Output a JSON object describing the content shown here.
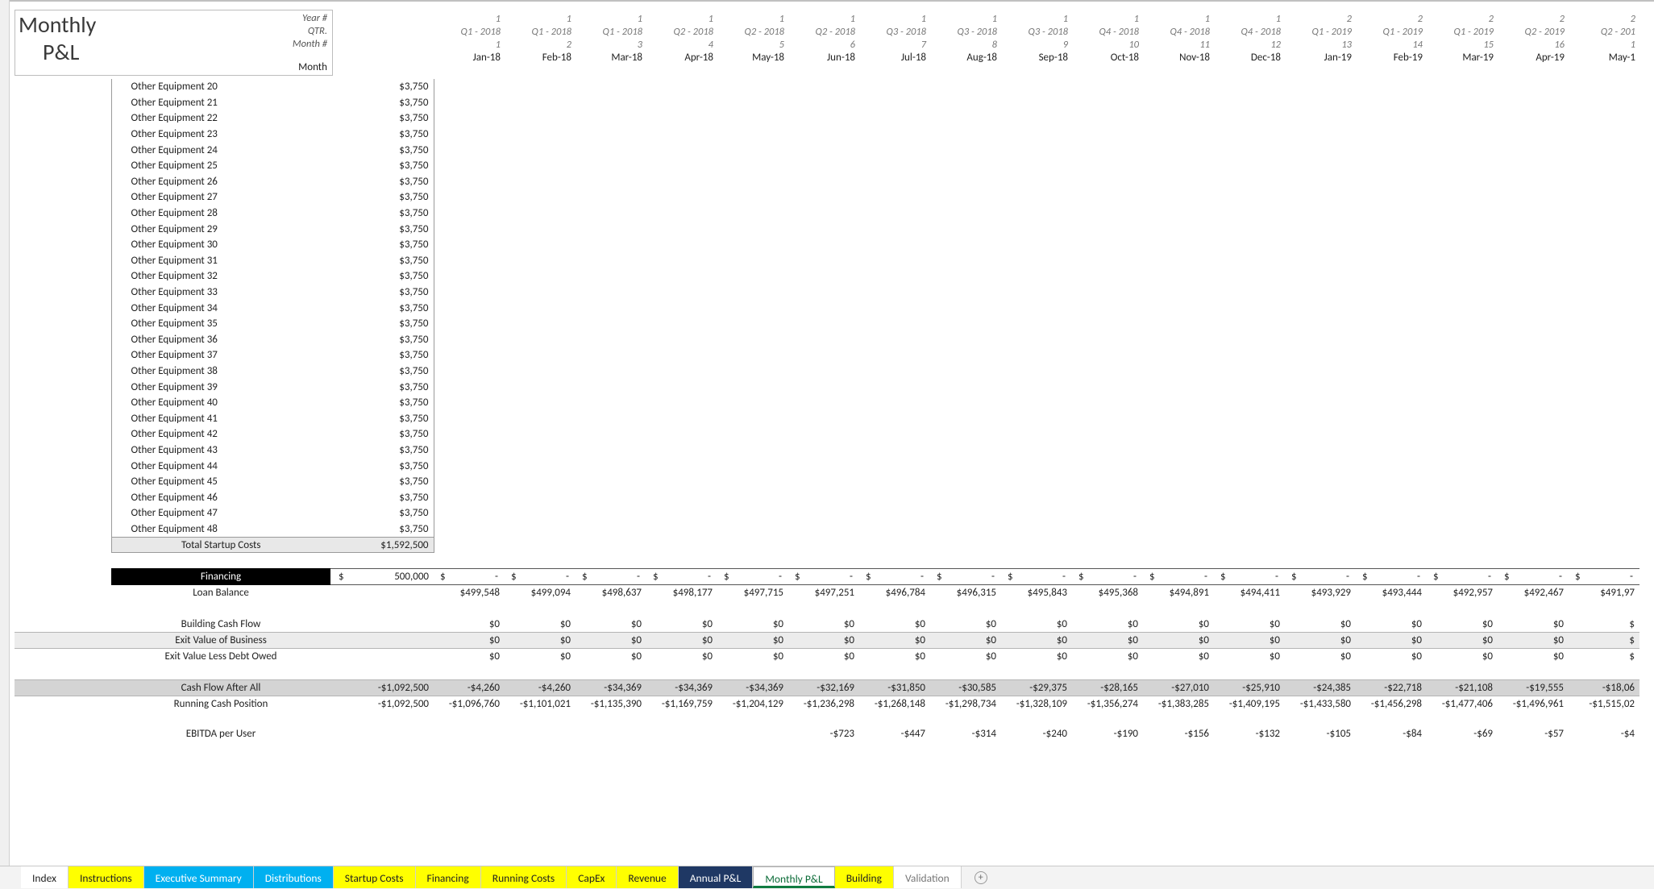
{
  "title": {
    "line1": "Monthly",
    "line2": "P&L"
  },
  "header_labels": {
    "year": "Year #",
    "qtr": "QTR.",
    "monthno": "Month #",
    "month": "Month"
  },
  "columns": [
    {
      "year": "1",
      "qtr": "Q1 - 2018",
      "mno": "1",
      "mon": "Jan-18"
    },
    {
      "year": "1",
      "qtr": "Q1 - 2018",
      "mno": "2",
      "mon": "Feb-18"
    },
    {
      "year": "1",
      "qtr": "Q1 - 2018",
      "mno": "3",
      "mon": "Mar-18"
    },
    {
      "year": "1",
      "qtr": "Q2 - 2018",
      "mno": "4",
      "mon": "Apr-18"
    },
    {
      "year": "1",
      "qtr": "Q2 - 2018",
      "mno": "5",
      "mon": "May-18"
    },
    {
      "year": "1",
      "qtr": "Q2 - 2018",
      "mno": "6",
      "mon": "Jun-18"
    },
    {
      "year": "1",
      "qtr": "Q3 - 2018",
      "mno": "7",
      "mon": "Jul-18"
    },
    {
      "year": "1",
      "qtr": "Q3 - 2018",
      "mno": "8",
      "mon": "Aug-18"
    },
    {
      "year": "1",
      "qtr": "Q3 - 2018",
      "mno": "9",
      "mon": "Sep-18"
    },
    {
      "year": "1",
      "qtr": "Q4 - 2018",
      "mno": "10",
      "mon": "Oct-18"
    },
    {
      "year": "1",
      "qtr": "Q4 - 2018",
      "mno": "11",
      "mon": "Nov-18"
    },
    {
      "year": "1",
      "qtr": "Q4 - 2018",
      "mno": "12",
      "mon": "Dec-18"
    },
    {
      "year": "2",
      "qtr": "Q1 - 2019",
      "mno": "13",
      "mon": "Jan-19"
    },
    {
      "year": "2",
      "qtr": "Q1 - 2019",
      "mno": "14",
      "mon": "Feb-19"
    },
    {
      "year": "2",
      "qtr": "Q1 - 2019",
      "mno": "15",
      "mon": "Mar-19"
    },
    {
      "year": "2",
      "qtr": "Q2 - 2019",
      "mno": "16",
      "mon": "Apr-19"
    },
    {
      "year": "2",
      "qtr": "Q2 - 201",
      "mno": "1",
      "mon": "May-1"
    }
  ],
  "equipment": {
    "start": 20,
    "end": 48,
    "value": "$3,750",
    "prefix": "Other Equipment "
  },
  "total_startup": {
    "label": "Total Startup Costs",
    "value": "$1,592,500"
  },
  "financing": {
    "header": "Financing",
    "loan_amount": "500,000",
    "currency": "$",
    "dash": "-",
    "loan_balance_label": "Loan Balance",
    "loan_balance": [
      "$499,548",
      "$499,094",
      "$498,637",
      "$498,177",
      "$497,715",
      "$497,251",
      "$496,784",
      "$496,315",
      "$495,843",
      "$495,368",
      "$494,891",
      "$494,411",
      "$493,929",
      "$493,444",
      "$492,957",
      "$492,467",
      "$491,97"
    ]
  },
  "rows": {
    "bld_cf": {
      "label": "Building Cash Flow",
      "first": "",
      "vals": [
        "$0",
        "$0",
        "$0",
        "$0",
        "$0",
        "$0",
        "$0",
        "$0",
        "$0",
        "$0",
        "$0",
        "$0",
        "$0",
        "$0",
        "$0",
        "$0",
        "$"
      ]
    },
    "exit_biz": {
      "label": "Exit Value of Business",
      "first": "",
      "vals": [
        "$0",
        "$0",
        "$0",
        "$0",
        "$0",
        "$0",
        "$0",
        "$0",
        "$0",
        "$0",
        "$0",
        "$0",
        "$0",
        "$0",
        "$0",
        "$0",
        "$"
      ]
    },
    "exit_debt": {
      "label": "Exit Value Less Debt Owed",
      "first": "",
      "vals": [
        "$0",
        "$0",
        "$0",
        "$0",
        "$0",
        "$0",
        "$0",
        "$0",
        "$0",
        "$0",
        "$0",
        "$0",
        "$0",
        "$0",
        "$0",
        "$0",
        "$"
      ]
    },
    "cfa": {
      "label": "Cash Flow After All",
      "first": "-$1,092,500",
      "vals": [
        "-$4,260",
        "-$4,260",
        "-$34,369",
        "-$34,369",
        "-$34,369",
        "-$32,169",
        "-$31,850",
        "-$30,585",
        "-$29,375",
        "-$28,165",
        "-$27,010",
        "-$25,910",
        "-$24,385",
        "-$22,718",
        "-$21,108",
        "-$19,555",
        "-$18,06"
      ]
    },
    "run": {
      "label": "Running Cash Position",
      "first": "-$1,092,500",
      "vals": [
        "-$1,096,760",
        "-$1,101,021",
        "-$1,135,390",
        "-$1,169,759",
        "-$1,204,129",
        "-$1,236,298",
        "-$1,268,148",
        "-$1,298,734",
        "-$1,328,109",
        "-$1,356,274",
        "-$1,383,285",
        "-$1,409,195",
        "-$1,433,580",
        "-$1,456,298",
        "-$1,477,406",
        "-$1,496,961",
        "-$1,515,02"
      ]
    },
    "ebitda": {
      "label": "EBITDA per User",
      "first": "",
      "vals": [
        "",
        "",
        "",
        "",
        "",
        "-$723",
        "-$447",
        "-$314",
        "-$240",
        "-$190",
        "-$156",
        "-$132",
        "-$105",
        "-$84",
        "-$69",
        "-$57",
        "-$4"
      ]
    }
  },
  "tabs": [
    {
      "label": "Index",
      "bg": "#ffffff",
      "fg": "#222222"
    },
    {
      "label": "Instructions",
      "bg": "#ffff00",
      "fg": "#222222"
    },
    {
      "label": "Executive Summary",
      "bg": "#00b0f0",
      "fg": "#ffffff"
    },
    {
      "label": "Distributions",
      "bg": "#00b0f0",
      "fg": "#ffffff"
    },
    {
      "label": "Startup Costs",
      "bg": "#ffff00",
      "fg": "#222222"
    },
    {
      "label": "Financing",
      "bg": "#ffff00",
      "fg": "#222222"
    },
    {
      "label": "Running Costs",
      "bg": "#ffff00",
      "fg": "#222222"
    },
    {
      "label": "CapEx",
      "bg": "#ffff00",
      "fg": "#222222"
    },
    {
      "label": "Revenue",
      "bg": "#ffff00",
      "fg": "#222222"
    },
    {
      "label": "Annual P&L",
      "bg": "#1f3864",
      "fg": "#ffffff"
    },
    {
      "label": "Monthly P&L",
      "bg": "",
      "fg": "#0a6b37",
      "active": true
    },
    {
      "label": "Building",
      "bg": "#ffff00",
      "fg": "#222222"
    },
    {
      "label": "Validation",
      "bg": "#ffffff",
      "fg": "#777777"
    }
  ]
}
